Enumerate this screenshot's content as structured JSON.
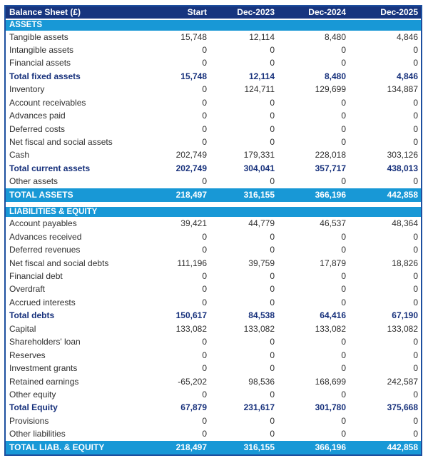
{
  "colors": {
    "header_navy": "#17357F",
    "section_blue": "#1898D6",
    "total_text_navy": "#17317C",
    "table_border_blue": "#1D4F9F",
    "body_text": "#2F2F2F"
  },
  "table": {
    "header": {
      "label": "Balance Sheet (£)",
      "columns": [
        "Start",
        "Dec-2023",
        "Dec-2024",
        "Dec-2025"
      ]
    },
    "sections": [
      {
        "title": "ASSETS",
        "rows": [
          {
            "label": "Tangible assets",
            "emphasis": false,
            "values": [
              "15,748",
              "12,114",
              "8,480",
              "4,846"
            ]
          },
          {
            "label": "Intangible assets",
            "emphasis": false,
            "values": [
              "0",
              "0",
              "0",
              "0"
            ]
          },
          {
            "label": "Financial assets",
            "emphasis": false,
            "values": [
              "0",
              "0",
              "0",
              "0"
            ]
          },
          {
            "label": "Total fixed assets",
            "emphasis": true,
            "values": [
              "15,748",
              "12,114",
              "8,480",
              "4,846"
            ]
          },
          {
            "label": "Inventory",
            "emphasis": false,
            "values": [
              "0",
              "124,711",
              "129,699",
              "134,887"
            ]
          },
          {
            "label": "Account receivables",
            "emphasis": false,
            "values": [
              "0",
              "0",
              "0",
              "0"
            ]
          },
          {
            "label": "Advances paid",
            "emphasis": false,
            "values": [
              "0",
              "0",
              "0",
              "0"
            ]
          },
          {
            "label": "Deferred costs",
            "emphasis": false,
            "values": [
              "0",
              "0",
              "0",
              "0"
            ]
          },
          {
            "label": "Net fiscal and social assets",
            "emphasis": false,
            "values": [
              "0",
              "0",
              "0",
              "0"
            ]
          },
          {
            "label": "Cash",
            "emphasis": false,
            "values": [
              "202,749",
              "179,331",
              "228,018",
              "303,126"
            ]
          },
          {
            "label": "Total current assets",
            "emphasis": true,
            "values": [
              "202,749",
              "304,041",
              "357,717",
              "438,013"
            ]
          },
          {
            "label": "Other assets",
            "emphasis": false,
            "values": [
              "0",
              "0",
              "0",
              "0"
            ]
          }
        ],
        "total": {
          "label": "TOTAL ASSETS",
          "values": [
            "218,497",
            "316,155",
            "366,196",
            "442,858"
          ]
        }
      },
      {
        "title": "LIABILITIES & EQUITY",
        "rows": [
          {
            "label": "Account payables",
            "emphasis": false,
            "values": [
              "39,421",
              "44,779",
              "46,537",
              "48,364"
            ]
          },
          {
            "label": "Advances received",
            "emphasis": false,
            "values": [
              "0",
              "0",
              "0",
              "0"
            ]
          },
          {
            "label": "Deferred revenues",
            "emphasis": false,
            "values": [
              "0",
              "0",
              "0",
              "0"
            ]
          },
          {
            "label": "Net fiscal and social debts",
            "emphasis": false,
            "values": [
              "111,196",
              "39,759",
              "17,879",
              "18,826"
            ]
          },
          {
            "label": "Financial debt",
            "emphasis": false,
            "values": [
              "0",
              "0",
              "0",
              "0"
            ]
          },
          {
            "label": "Overdraft",
            "emphasis": false,
            "values": [
              "0",
              "0",
              "0",
              "0"
            ]
          },
          {
            "label": "Accrued interests",
            "emphasis": false,
            "values": [
              "0",
              "0",
              "0",
              "0"
            ]
          },
          {
            "label": "Total debts",
            "emphasis": true,
            "values": [
              "150,617",
              "84,538",
              "64,416",
              "67,190"
            ]
          },
          {
            "label": "Capital",
            "emphasis": false,
            "values": [
              "133,082",
              "133,082",
              "133,082",
              "133,082"
            ]
          },
          {
            "label": "Shareholders' loan",
            "emphasis": false,
            "values": [
              "0",
              "0",
              "0",
              "0"
            ]
          },
          {
            "label": "Reserves",
            "emphasis": false,
            "values": [
              "0",
              "0",
              "0",
              "0"
            ]
          },
          {
            "label": "Investment grants",
            "emphasis": false,
            "values": [
              "0",
              "0",
              "0",
              "0"
            ]
          },
          {
            "label": "Retained earnings",
            "emphasis": false,
            "values": [
              "-65,202",
              "98,536",
              "168,699",
              "242,587"
            ]
          },
          {
            "label": "Other equity",
            "emphasis": false,
            "values": [
              "0",
              "0",
              "0",
              "0"
            ]
          },
          {
            "label": "Total Equity",
            "emphasis": true,
            "values": [
              "67,879",
              "231,617",
              "301,780",
              "375,668"
            ]
          },
          {
            "label": "Provisions",
            "emphasis": false,
            "values": [
              "0",
              "0",
              "0",
              "0"
            ]
          },
          {
            "label": "Other liabilities",
            "emphasis": false,
            "values": [
              "0",
              "0",
              "0",
              "0"
            ]
          }
        ],
        "total": {
          "label": "TOTAL LIAB. & EQUITY",
          "values": [
            "218,497",
            "316,155",
            "366,196",
            "442,858"
          ]
        }
      }
    ]
  },
  "chart_data": {
    "type": "table",
    "title": "Balance Sheet (£)",
    "columns": [
      "Balance Sheet (£)",
      "Start",
      "Dec-2023",
      "Dec-2024",
      "Dec-2025"
    ],
    "rows": [
      [
        "Tangible assets",
        15748,
        12114,
        8480,
        4846
      ],
      [
        "Intangible assets",
        0,
        0,
        0,
        0
      ],
      [
        "Financial assets",
        0,
        0,
        0,
        0
      ],
      [
        "Total fixed assets",
        15748,
        12114,
        8480,
        4846
      ],
      [
        "Inventory",
        0,
        124711,
        129699,
        134887
      ],
      [
        "Account receivables",
        0,
        0,
        0,
        0
      ],
      [
        "Advances paid",
        0,
        0,
        0,
        0
      ],
      [
        "Deferred costs",
        0,
        0,
        0,
        0
      ],
      [
        "Net fiscal and social assets",
        0,
        0,
        0,
        0
      ],
      [
        "Cash",
        202749,
        179331,
        228018,
        303126
      ],
      [
        "Total current assets",
        202749,
        304041,
        357717,
        438013
      ],
      [
        "Other assets",
        0,
        0,
        0,
        0
      ],
      [
        "TOTAL ASSETS",
        218497,
        316155,
        366196,
        442858
      ],
      [
        "Account payables",
        39421,
        44779,
        46537,
        48364
      ],
      [
        "Advances received",
        0,
        0,
        0,
        0
      ],
      [
        "Deferred revenues",
        0,
        0,
        0,
        0
      ],
      [
        "Net fiscal and social debts",
        111196,
        39759,
        17879,
        18826
      ],
      [
        "Financial debt",
        0,
        0,
        0,
        0
      ],
      [
        "Overdraft",
        0,
        0,
        0,
        0
      ],
      [
        "Accrued interests",
        0,
        0,
        0,
        0
      ],
      [
        "Total debts",
        150617,
        84538,
        64416,
        67190
      ],
      [
        "Capital",
        133082,
        133082,
        133082,
        133082
      ],
      [
        "Shareholders' loan",
        0,
        0,
        0,
        0
      ],
      [
        "Reserves",
        0,
        0,
        0,
        0
      ],
      [
        "Investment grants",
        0,
        0,
        0,
        0
      ],
      [
        "Retained earnings",
        -65202,
        98536,
        168699,
        242587
      ],
      [
        "Other equity",
        0,
        0,
        0,
        0
      ],
      [
        "Total Equity",
        67879,
        231617,
        301780,
        375668
      ],
      [
        "Provisions",
        0,
        0,
        0,
        0
      ],
      [
        "Other liabilities",
        0,
        0,
        0,
        0
      ],
      [
        "TOTAL LIAB. & EQUITY",
        218497,
        316155,
        366196,
        442858
      ]
    ]
  }
}
